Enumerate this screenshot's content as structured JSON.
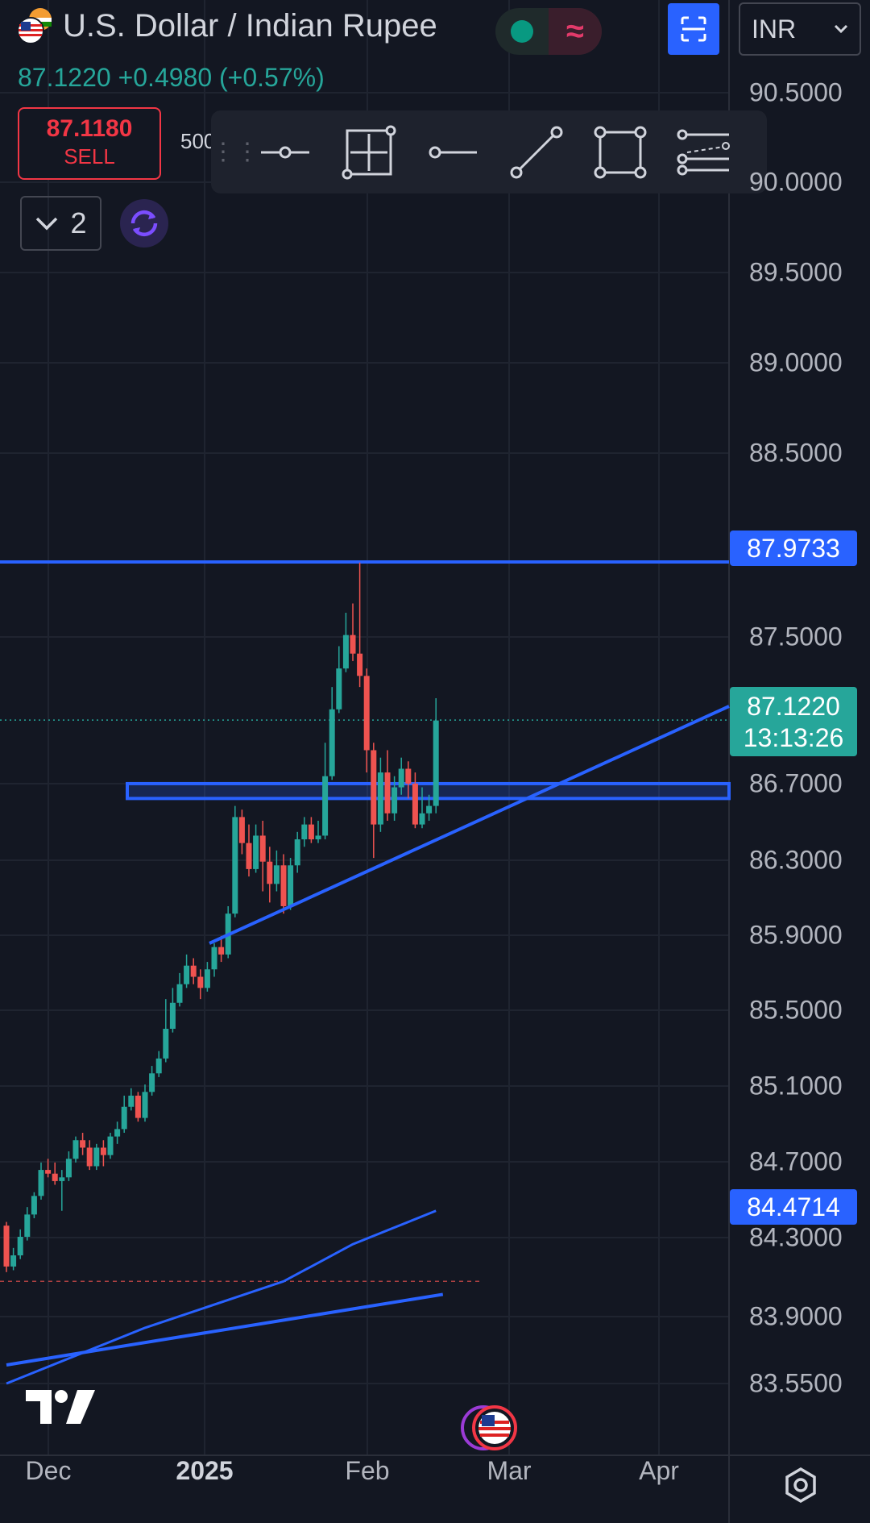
{
  "header": {
    "title": "U.S. Dollar / Indian Rupee",
    "quote": "87.1220 +0.4980 (+0.57%)",
    "currency_select": "INR",
    "pill_icon": "market-status-dot",
    "wave_glyph": "≈"
  },
  "trade": {
    "sell_price": "87.1180",
    "sell_label": "SELL",
    "quantity_partial": "500"
  },
  "toolbar": {
    "grip": "⋮⋮",
    "tools": [
      "horizontal-ray-icon",
      "cross-line-icon",
      "horizontal-line-icon",
      "trend-line-icon",
      "rectangle-icon",
      "parallel-channel-icon"
    ]
  },
  "collapse": {
    "count": "2"
  },
  "price_axis": {
    "labels": [
      "90.5000",
      "90.0000",
      "89.5000",
      "89.0000",
      "88.5000",
      "87.5000",
      "86.7000",
      "86.3000",
      "85.9000",
      "85.5000",
      "85.1000",
      "84.7000",
      "84.3000",
      "83.9000",
      "83.5500"
    ],
    "highlight_top": "87.9733",
    "current_price": "87.1220",
    "countdown": "13:13:26",
    "highlight_bottom": "84.4714"
  },
  "time_axis": {
    "labels": [
      "Dec",
      "2025",
      "Feb",
      "Mar",
      "Apr"
    ]
  },
  "colors": {
    "background": "#131722",
    "up": "#26a69a",
    "down": "#ef5350",
    "drawing": "#2962ff",
    "sell": "#f23645"
  },
  "chart_data": {
    "type": "candlestick",
    "symbol": "USDINR",
    "y_range": [
      83.35,
      90.7
    ],
    "candles": [
      [
        84.4,
        84.18,
        84.42,
        84.15
      ],
      [
        84.18,
        84.24,
        84.28,
        84.16
      ],
      [
        84.24,
        84.34,
        84.38,
        84.22
      ],
      [
        84.34,
        84.46,
        84.5,
        84.32
      ],
      [
        84.46,
        84.56,
        84.58,
        84.44
      ],
      [
        84.56,
        84.7,
        84.74,
        84.54
      ],
      [
        84.7,
        84.68,
        84.76,
        84.66
      ],
      [
        84.68,
        84.64,
        84.74,
        84.62
      ],
      [
        84.64,
        84.66,
        84.7,
        84.48
      ],
      [
        84.66,
        84.76,
        84.8,
        84.64
      ],
      [
        84.76,
        84.86,
        84.88,
        84.74
      ],
      [
        84.86,
        84.82,
        84.9,
        84.78
      ],
      [
        84.82,
        84.72,
        84.86,
        84.7
      ],
      [
        84.72,
        84.82,
        84.84,
        84.7
      ],
      [
        84.82,
        84.78,
        84.86,
        84.72
      ],
      [
        84.78,
        84.88,
        84.9,
        84.76
      ],
      [
        84.88,
        84.92,
        84.96,
        84.84
      ],
      [
        84.92,
        85.04,
        85.1,
        84.9
      ],
      [
        85.04,
        85.1,
        85.14,
        85.02
      ],
      [
        85.1,
        84.98,
        85.12,
        84.96
      ],
      [
        84.98,
        85.12,
        85.16,
        84.96
      ],
      [
        85.12,
        85.22,
        85.26,
        85.1
      ],
      [
        85.22,
        85.3,
        85.34,
        85.2
      ],
      [
        85.3,
        85.46,
        85.62,
        85.28
      ],
      [
        85.46,
        85.6,
        85.68,
        85.44
      ],
      [
        85.6,
        85.7,
        85.76,
        85.58
      ],
      [
        85.7,
        85.8,
        85.86,
        85.68
      ],
      [
        85.8,
        85.74,
        85.84,
        85.7
      ],
      [
        85.74,
        85.68,
        85.78,
        85.62
      ],
      [
        85.68,
        85.78,
        85.82,
        85.66
      ],
      [
        85.78,
        85.9,
        85.92,
        85.74
      ],
      [
        85.9,
        85.86,
        85.96,
        85.82
      ],
      [
        85.86,
        86.08,
        86.12,
        85.84
      ],
      [
        86.08,
        86.6,
        86.66,
        86.06
      ],
      [
        86.6,
        86.46,
        86.64,
        86.4
      ],
      [
        86.46,
        86.32,
        86.56,
        86.28
      ],
      [
        86.32,
        86.5,
        86.56,
        86.3
      ],
      [
        86.5,
        86.36,
        86.58,
        86.2
      ],
      [
        86.36,
        86.24,
        86.44,
        86.14
      ],
      [
        86.24,
        86.34,
        86.42,
        86.2
      ],
      [
        86.34,
        86.12,
        86.4,
        86.08
      ],
      [
        86.12,
        86.34,
        86.38,
        86.1
      ],
      [
        86.34,
        86.48,
        86.52,
        86.3
      ],
      [
        86.48,
        86.56,
        86.6,
        86.44
      ],
      [
        86.56,
        86.48,
        86.6,
        86.46
      ],
      [
        86.48,
        86.5,
        86.58,
        86.46
      ],
      [
        86.5,
        86.82,
        87.0,
        86.48
      ],
      [
        86.82,
        87.18,
        87.3,
        86.8
      ],
      [
        87.18,
        87.4,
        87.52,
        87.16
      ],
      [
        87.4,
        87.58,
        87.7,
        87.38
      ],
      [
        87.58,
        87.48,
        87.75,
        87.44
      ],
      [
        87.48,
        87.36,
        87.97,
        87.3
      ],
      [
        87.36,
        86.96,
        87.4,
        86.84
      ],
      [
        86.96,
        86.56,
        87.0,
        86.38
      ],
      [
        86.56,
        86.84,
        86.92,
        86.52
      ],
      [
        86.84,
        86.62,
        86.96,
        86.58
      ],
      [
        86.62,
        86.76,
        86.82,
        86.58
      ],
      [
        86.76,
        86.86,
        86.92,
        86.72
      ],
      [
        86.86,
        86.78,
        86.9,
        86.7
      ],
      [
        86.78,
        86.56,
        86.84,
        86.54
      ],
      [
        86.56,
        86.62,
        86.76,
        86.54
      ],
      [
        86.62,
        86.66,
        86.72,
        86.58
      ],
      [
        86.66,
        87.12,
        87.24,
        86.62
      ]
    ],
    "annotations": {
      "horizontal_line": 87.9733,
      "zone": [
        86.7,
        86.78
      ],
      "last_price_line": 87.122,
      "dashed_level": 84.1,
      "trendline_main": [
        [
          32,
          85.88
        ],
        [
          77,
          87.12
        ]
      ],
      "ma_line": [
        [
          0,
          83.55
        ],
        [
          20,
          83.85
        ],
        [
          40,
          84.1
        ],
        [
          50,
          84.3
        ],
        [
          62,
          84.48
        ]
      ],
      "trendline_lower": [
        [
          0,
          83.65
        ],
        [
          63,
          84.03
        ]
      ]
    }
  }
}
